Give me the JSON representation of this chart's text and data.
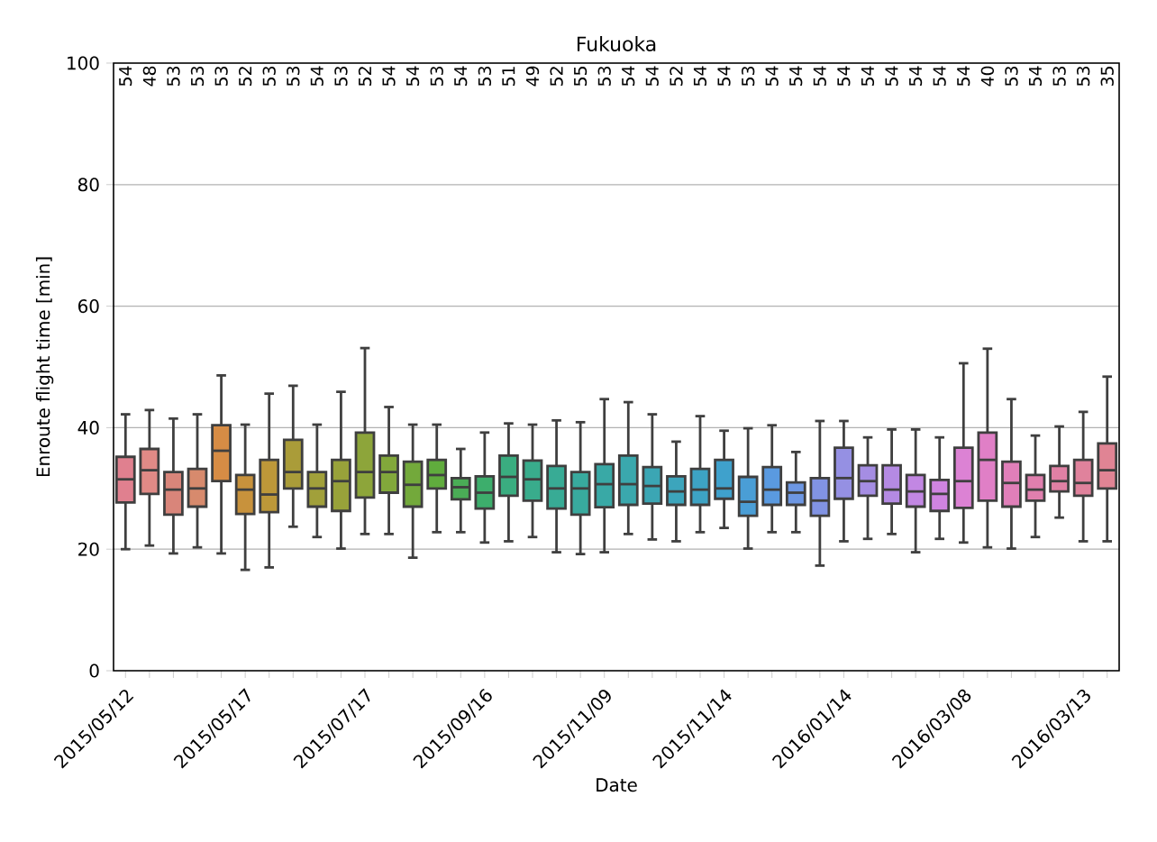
{
  "chart_data": {
    "type": "box",
    "title": "Fukuoka",
    "xlabel": "Date",
    "ylabel": "Enroute flight time [min]",
    "categories": [
      "2015/05/12",
      null,
      null,
      null,
      null,
      "2015/05/17",
      null,
      null,
      null,
      null,
      "2015/07/17",
      null,
      null,
      null,
      null,
      "2015/09/16",
      null,
      null,
      null,
      null,
      "2015/11/09",
      null,
      null,
      null,
      null,
      "2015/11/14",
      null,
      null,
      null,
      null,
      "2016/01/14",
      null,
      null,
      null,
      null,
      "2016/03/08",
      null,
      null,
      null,
      null,
      "2016/03/13",
      null
    ],
    "boxes": [
      {
        "low": 20.0,
        "q1": 27.7,
        "median": 31.5,
        "q3": 35.2,
        "high": 42.2
      },
      {
        "low": 20.6,
        "q1": 29.1,
        "median": 33.0,
        "q3": 36.5,
        "high": 42.9
      },
      {
        "low": 19.3,
        "q1": 25.7,
        "median": 29.8,
        "q3": 32.7,
        "high": 41.5
      },
      {
        "low": 20.3,
        "q1": 27.0,
        "median": 30.0,
        "q3": 33.2,
        "high": 42.2
      },
      {
        "low": 19.3,
        "q1": 31.2,
        "median": 36.2,
        "q3": 40.4,
        "high": 48.6
      },
      {
        "low": 16.6,
        "q1": 25.8,
        "median": 29.8,
        "q3": 32.2,
        "high": 40.5
      },
      {
        "low": 17.0,
        "q1": 26.1,
        "median": 29.0,
        "q3": 34.7,
        "high": 45.6
      },
      {
        "low": 23.7,
        "q1": 30.0,
        "median": 32.7,
        "q3": 38.0,
        "high": 46.9
      },
      {
        "low": 22.0,
        "q1": 27.0,
        "median": 30.0,
        "q3": 32.7,
        "high": 40.5
      },
      {
        "low": 20.1,
        "q1": 26.3,
        "median": 31.2,
        "q3": 34.7,
        "high": 45.9
      },
      {
        "low": 22.5,
        "q1": 28.5,
        "median": 32.7,
        "q3": 39.2,
        "high": 53.1
      },
      {
        "low": 22.5,
        "q1": 29.3,
        "median": 32.7,
        "q3": 35.4,
        "high": 43.4
      },
      {
        "low": 18.6,
        "q1": 27.0,
        "median": 30.6,
        "q3": 34.4,
        "high": 40.5
      },
      {
        "low": 22.8,
        "q1": 30.0,
        "median": 32.2,
        "q3": 34.7,
        "high": 40.5
      },
      {
        "low": 22.8,
        "q1": 28.2,
        "median": 30.2,
        "q3": 31.7,
        "high": 36.5
      },
      {
        "low": 21.1,
        "q1": 26.7,
        "median": 29.3,
        "q3": 32.0,
        "high": 39.2
      },
      {
        "low": 21.3,
        "q1": 28.8,
        "median": 31.9,
        "q3": 35.4,
        "high": 40.7
      },
      {
        "low": 22.0,
        "q1": 28.0,
        "median": 31.5,
        "q3": 34.6,
        "high": 40.5
      },
      {
        "low": 19.5,
        "q1": 26.7,
        "median": 30.0,
        "q3": 33.7,
        "high": 41.2
      },
      {
        "low": 19.2,
        "q1": 25.7,
        "median": 30.0,
        "q3": 32.7,
        "high": 40.9
      },
      {
        "low": 19.5,
        "q1": 26.9,
        "median": 30.7,
        "q3": 34.0,
        "high": 44.7
      },
      {
        "low": 22.5,
        "q1": 27.3,
        "median": 30.7,
        "q3": 35.4,
        "high": 44.2
      },
      {
        "low": 21.6,
        "q1": 27.5,
        "median": 30.4,
        "q3": 33.5,
        "high": 42.2
      },
      {
        "low": 21.3,
        "q1": 27.3,
        "median": 29.5,
        "q3": 32.0,
        "high": 37.7
      },
      {
        "low": 22.8,
        "q1": 27.3,
        "median": 29.8,
        "q3": 33.2,
        "high": 41.9
      },
      {
        "low": 23.5,
        "q1": 28.3,
        "median": 30.0,
        "q3": 34.7,
        "high": 39.5
      },
      {
        "low": 20.1,
        "q1": 25.5,
        "median": 27.8,
        "q3": 31.9,
        "high": 39.9
      },
      {
        "low": 22.8,
        "q1": 27.3,
        "median": 29.8,
        "q3": 33.5,
        "high": 40.4
      },
      {
        "low": 22.8,
        "q1": 27.3,
        "median": 29.3,
        "q3": 31.0,
        "high": 36.0
      },
      {
        "low": 17.3,
        "q1": 25.5,
        "median": 28.0,
        "q3": 31.7,
        "high": 41.1
      },
      {
        "low": 21.3,
        "q1": 28.3,
        "median": 31.7,
        "q3": 36.7,
        "high": 41.1
      },
      {
        "low": 21.7,
        "q1": 28.8,
        "median": 31.2,
        "q3": 33.8,
        "high": 38.4
      },
      {
        "low": 22.5,
        "q1": 27.5,
        "median": 29.8,
        "q3": 33.8,
        "high": 39.7
      },
      {
        "low": 19.5,
        "q1": 27.0,
        "median": 29.5,
        "q3": 32.2,
        "high": 39.7
      },
      {
        "low": 21.7,
        "q1": 26.3,
        "median": 29.1,
        "q3": 31.4,
        "high": 38.4
      },
      {
        "low": 21.1,
        "q1": 26.8,
        "median": 31.2,
        "q3": 36.7,
        "high": 50.6
      },
      {
        "low": 20.3,
        "q1": 28.0,
        "median": 34.7,
        "q3": 39.2,
        "high": 53.0
      },
      {
        "low": 20.1,
        "q1": 27.0,
        "median": 30.9,
        "q3": 34.4,
        "high": 44.7
      },
      {
        "low": 22.0,
        "q1": 28.0,
        "median": 29.8,
        "q3": 32.2,
        "high": 38.7
      },
      {
        "low": 25.2,
        "q1": 29.5,
        "median": 31.2,
        "q3": 33.7,
        "high": 40.2
      },
      {
        "low": 21.3,
        "q1": 28.8,
        "median": 30.9,
        "q3": 34.7,
        "high": 42.6
      },
      {
        "low": 21.3,
        "q1": 30.0,
        "median": 33.0,
        "q3": 37.4,
        "high": 48.4
      }
    ],
    "colors": [
      "#e0808f",
      "#e08a86",
      "#d9857a",
      "#d78a6d",
      "#d68c45",
      "#c8923c",
      "#bd9839",
      "#aa9c39",
      "#a1a03a",
      "#98a23a",
      "#8da53a",
      "#82a83b",
      "#73a93b",
      "#60ac3d",
      "#4aad56",
      "#3dae6c",
      "#3aad80",
      "#39ac8c",
      "#38ab95",
      "#38aa9e",
      "#39a9a6",
      "#3aa8ad",
      "#3ba6b4",
      "#3ca5bc",
      "#3da3c4",
      "#3fa1cc",
      "#4a9ed6",
      "#5a9ae0",
      "#6d97e3",
      "#8193e3",
      "#9590e3",
      "#a58de3",
      "#b48ae3",
      "#c287e3",
      "#d084e0",
      "#dc82d4",
      "#e07fc6",
      "#e07fb9",
      "#e07fae",
      "#e080a4",
      "#e0829c",
      "#e08494"
    ],
    "annotations": [
      "54",
      "48",
      "53",
      "53",
      "53",
      "52",
      "53",
      "53",
      "54",
      "53",
      "52",
      "54",
      "54",
      "53",
      "54",
      "53",
      "51",
      "49",
      "52",
      "55",
      "53",
      "54",
      "54",
      "52",
      "54",
      "54",
      "53",
      "54",
      "54",
      "54",
      "54",
      "54",
      "54",
      "54",
      "54",
      "54",
      "40",
      "53",
      "54",
      "53",
      "53",
      "35"
    ],
    "ylim": [
      0,
      100
    ],
    "yticks": [
      0,
      20,
      40,
      60,
      80,
      100
    ],
    "grid": "y"
  }
}
